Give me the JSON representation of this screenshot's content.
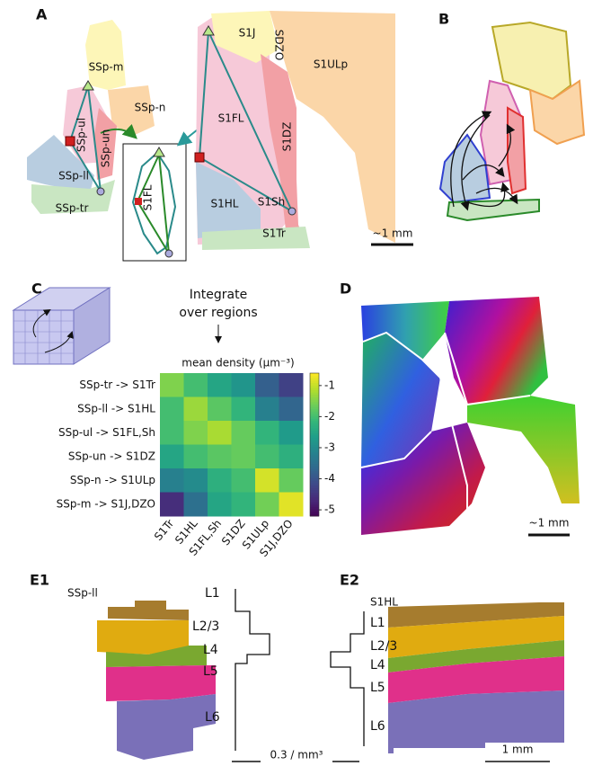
{
  "panel_labels": [
    "A",
    "B",
    "C",
    "D",
    "E1",
    "E2"
  ],
  "panel_a": {
    "left_regions": [
      "SSp-m",
      "SSp-n",
      "SSp-ul",
      "SSp-un",
      "SSp-ll",
      "SSp-tr"
    ],
    "inset_label": "S1FL",
    "right_regions": [
      "S1J",
      "SDZO",
      "S1ULp",
      "S1FL",
      "S1DZ",
      "S1HL",
      "S1Sh",
      "S1Tr"
    ],
    "scale": "~1 mm"
  },
  "panel_c": {
    "caption": [
      "Integrate",
      "over regions"
    ],
    "heatmap": {
      "type": "heatmap",
      "title": "mean density (μm⁻³)",
      "rows": [
        "SSp-tr -> S1Tr",
        "SSp-ll -> S1HL",
        "SSp-ul -> S1FL,Sh",
        "SSp-un -> S1DZ",
        "SSp-n -> S1ULp",
        "SSp-m -> S1J,DZO"
      ],
      "columns": [
        "S1Tr",
        "S1HL",
        "S1FL,Sh",
        "S1DZ",
        "S1ULp",
        "S1J,DZO"
      ],
      "values": [
        [
          -1.5,
          -2,
          -2.5,
          -2.8,
          -3.8,
          -4.3
        ],
        [
          -2,
          -1.3,
          -1.8,
          -2.2,
          -3.2,
          -3.7
        ],
        [
          -2,
          -1.5,
          -1.2,
          -1.7,
          -2.2,
          -2.7
        ],
        [
          -2.5,
          -2,
          -1.8,
          -1.7,
          -2,
          -2.3
        ],
        [
          -3.2,
          -3,
          -2.3,
          -2,
          -0.9,
          -1.7
        ],
        [
          -4.6,
          -3.5,
          -2.5,
          -2.2,
          -1.6,
          -0.8
        ]
      ],
      "clim": [
        -5.2,
        -0.6
      ],
      "cticks": [
        -1,
        -2,
        -3,
        -4,
        -5
      ],
      "colormap": "viridis"
    }
  },
  "panel_d": {
    "scale": "~1 mm"
  },
  "panel_e1": {
    "title": "SSp-ll",
    "layers": [
      "L1",
      "L2/3",
      "L4",
      "L5",
      "L6"
    ],
    "scale": "0.3 / mm³"
  },
  "panel_e2": {
    "title": "S1HL",
    "layers": [
      "L1",
      "L2/3",
      "L4",
      "L5",
      "L6"
    ],
    "scale": "1 mm"
  }
}
